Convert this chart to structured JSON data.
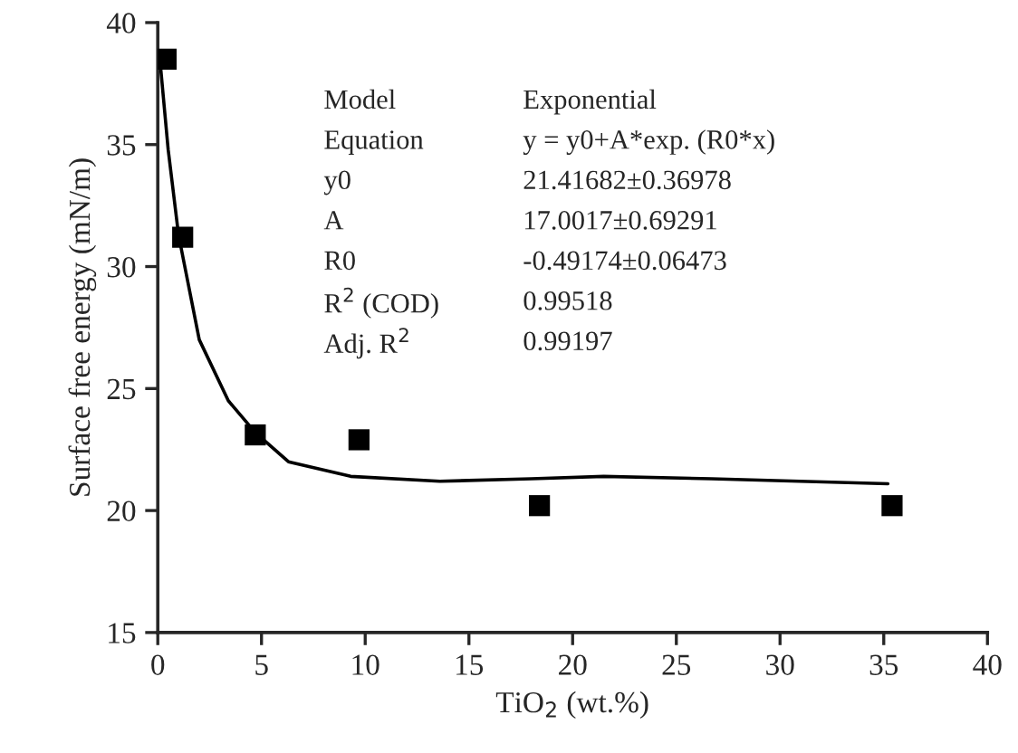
{
  "chart_data": {
    "type": "scatter",
    "xlabel": "TiO$_{2}$ (wt.%)",
    "ylabel": "Surface free energy (mN/m)",
    "xlim": [
      0,
      40
    ],
    "ylim": [
      15,
      40
    ],
    "xticks": [
      0,
      5,
      10,
      15,
      20,
      25,
      30,
      35,
      40
    ],
    "yticks": [
      15,
      20,
      25,
      30,
      35,
      40
    ],
    "grid": false,
    "legend": false,
    "series": [
      {
        "marker": "square",
        "color": "#000000",
        "x": [
          0.4,
          1.2,
          4.7,
          9.7,
          18.4,
          35.4
        ],
        "values": [
          38.5,
          31.2,
          23.1,
          22.9,
          20.2,
          20.2
        ]
      },
      {
        "type": "line",
        "marker": "none",
        "line_style": "solid",
        "color": "#000000",
        "x": [
          0.1,
          0.5,
          1.0,
          2.0,
          3.4,
          4.7,
          6.3,
          9.3,
          13.6,
          18.0,
          21.5,
          26.7,
          35.2
        ],
        "values": [
          38.5,
          34.8,
          31.3,
          27.0,
          24.5,
          23.2,
          22.0,
          21.4,
          21.2,
          21.3,
          21.4,
          21.3,
          21.1
        ]
      }
    ],
    "annotations": [
      "Model",
      "Exponential",
      "Equation",
      "y = y0+A*exp. (R0*x)",
      "y0",
      "21.41682±0.36978",
      "A",
      "17.0017±0.69291",
      "R0",
      "-0.49174±0.06473",
      "R$^{2}$ (COD)",
      "0.99518",
      "Adj. R$^{2}$",
      "0.99197"
    ]
  }
}
